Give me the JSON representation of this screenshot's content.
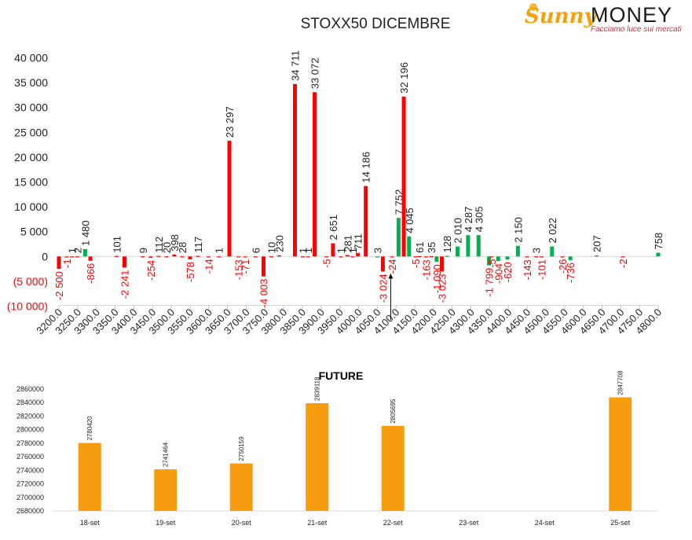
{
  "logo": {
    "brand_a": "Sunny",
    "brand_b": "MONEY",
    "tagline": "Facciamo luce sui mercati"
  },
  "colors": {
    "call": "#00b050",
    "put": "#ff0000",
    "future": "#f59d0e",
    "axis": "#d9d9d9",
    "text": "#222222",
    "neg_text": "#ff0000"
  },
  "chart_data": [
    {
      "type": "bar",
      "title": "STOXX50 DICEMBRE",
      "ylim": [
        -10000,
        40000
      ],
      "yticks": [
        {
          "value": 40000,
          "label": "40 000"
        },
        {
          "value": 35000,
          "label": "35 000"
        },
        {
          "value": 30000,
          "label": "30 000"
        },
        {
          "value": 25000,
          "label": "25 000"
        },
        {
          "value": 20000,
          "label": "20 000"
        },
        {
          "value": 15000,
          "label": "15 000"
        },
        {
          "value": 10000,
          "label": "10 000"
        },
        {
          "value": 5000,
          "label": "5 000"
        },
        {
          "value": 0,
          "label": "0"
        },
        {
          "value": -5000,
          "label": "(5 000)"
        },
        {
          "value": -10000,
          "label": "(10 000)"
        }
      ],
      "categories": [
        "3200.0",
        "3250.0",
        "3300.0",
        "3350.0",
        "3400.0",
        "3450.0",
        "3500.0",
        "3550.0",
        "3600.0",
        "3650.0",
        "3700.0",
        "3750.0",
        "3800.0",
        "3850.0",
        "3900.0",
        "3950.0",
        "4000.0",
        "4050.0",
        "4100.0",
        "4150.0",
        "4200.0",
        "4250.0",
        "4300.0",
        "4350.0",
        "4400.0",
        "4450.0",
        "4500.0",
        "4550.0",
        "4600.0",
        "4650.0",
        "4700.0",
        "4750.0",
        "4800.0"
      ],
      "bars": [
        {
          "x": 0.0,
          "value": -2500,
          "color": "put",
          "label": "-2 500"
        },
        {
          "x": 0.3,
          "value": -1,
          "color": "put",
          "label": "-1"
        },
        {
          "x": 0.5,
          "value": 1,
          "color": "put",
          "label": "1"
        },
        {
          "x": 0.7,
          "value": 2,
          "color": "put",
          "label": "2"
        },
        {
          "x": 1.0,
          "value": 1480,
          "color": "call",
          "label": "1 480"
        },
        {
          "x": 1.2,
          "value": -866,
          "color": "put",
          "label": "-866"
        },
        {
          "x": 2.2,
          "value": 101,
          "color": "put",
          "label": "101"
        },
        {
          "x": 2.5,
          "value": -2241,
          "color": "put",
          "label": "-2 241"
        },
        {
          "x": 3.2,
          "value": 9,
          "color": "put",
          "label": "9"
        },
        {
          "x": 3.5,
          "value": -254,
          "color": "put",
          "label": "-254"
        },
        {
          "x": 3.8,
          "value": 112,
          "color": "put",
          "label": "112"
        },
        {
          "x": 4.1,
          "value": 20,
          "color": "put",
          "label": "20"
        },
        {
          "x": 4.4,
          "value": 398,
          "color": "put",
          "label": "398"
        },
        {
          "x": 4.7,
          "value": 28,
          "color": "put",
          "label": "28"
        },
        {
          "x": 5.0,
          "value": -578,
          "color": "put",
          "label": "-578"
        },
        {
          "x": 5.3,
          "value": 117,
          "color": "put",
          "label": "117"
        },
        {
          "x": 5.7,
          "value": -14,
          "color": "put",
          "label": "-14"
        },
        {
          "x": 6.1,
          "value": 1,
          "color": "put",
          "label": "1"
        },
        {
          "x": 6.5,
          "value": 23297,
          "color": "put",
          "label": "23 297"
        },
        {
          "x": 6.85,
          "value": -153,
          "color": "put",
          "label": "-153"
        },
        {
          "x": 7.1,
          "value": -71,
          "color": "put",
          "label": "-71"
        },
        {
          "x": 7.5,
          "value": 6,
          "color": "put",
          "label": "6"
        },
        {
          "x": 7.8,
          "value": -4003,
          "color": "put",
          "label": "-4 003"
        },
        {
          "x": 8.1,
          "value": 10,
          "color": "put",
          "label": "10"
        },
        {
          "x": 8.4,
          "value": 230,
          "color": "put",
          "label": "230"
        },
        {
          "x": 9.0,
          "value": 34711,
          "color": "put",
          "label": "34 711"
        },
        {
          "x": 9.3,
          "value": 1,
          "color": "put",
          "label": "1"
        },
        {
          "x": 9.5,
          "value": 1,
          "color": "put",
          "label": "1"
        },
        {
          "x": 9.75,
          "value": 33072,
          "color": "put",
          "label": "33 072"
        },
        {
          "x": 10.2,
          "value": -5,
          "color": "put",
          "label": "-5"
        },
        {
          "x": 10.45,
          "value": 2651,
          "color": "put",
          "label": "2 651"
        },
        {
          "x": 10.75,
          "value": 1,
          "color": "put",
          "label": "1"
        },
        {
          "x": 11.0,
          "value": 281,
          "color": "put",
          "label": "281"
        },
        {
          "x": 11.2,
          "value": 1,
          "color": "put",
          "label": "1"
        },
        {
          "x": 11.4,
          "value": 711,
          "color": "put",
          "label": "711"
        },
        {
          "x": 11.7,
          "value": 14186,
          "color": "put",
          "label": "14 186"
        },
        {
          "x": 12.15,
          "value": 3,
          "color": "call",
          "label": "3"
        },
        {
          "x": 12.35,
          "value": -3024,
          "color": "put",
          "label": "-3 024"
        },
        {
          "x": 12.7,
          "value": -24,
          "color": "put",
          "label": "-24"
        },
        {
          "x": 12.95,
          "value": 7752,
          "color": "call",
          "label": "7 752"
        },
        {
          "x": 13.15,
          "value": 32196,
          "color": "put",
          "label": "32 196"
        },
        {
          "x": 13.35,
          "value": 4045,
          "color": "call",
          "label": "4 045"
        },
        {
          "x": 13.6,
          "value": -5,
          "color": "put",
          "label": "-5"
        },
        {
          "x": 13.75,
          "value": 61,
          "color": "put",
          "label": "61"
        },
        {
          "x": 14.0,
          "value": -163,
          "color": "put",
          "label": "-163"
        },
        {
          "x": 14.2,
          "value": 35,
          "color": "put",
          "label": "35"
        },
        {
          "x": 14.4,
          "value": -1090,
          "color": "call",
          "label": "-1 090"
        },
        {
          "x": 14.6,
          "value": -3023,
          "color": "put",
          "label": "-3 023"
        },
        {
          "x": 14.8,
          "value": 128,
          "color": "call",
          "label": "128"
        },
        {
          "x": 15.2,
          "value": 2010,
          "color": "call",
          "label": "2 010"
        },
        {
          "x": 15.6,
          "value": 4287,
          "color": "call",
          "label": "4 287"
        },
        {
          "x": 16.0,
          "value": 4305,
          "color": "call",
          "label": "4 305"
        },
        {
          "x": 16.4,
          "value": -1799,
          "color": "call",
          "label": "-1 799"
        },
        {
          "x": 16.5,
          "value": -5,
          "color": "put",
          "label": "-5"
        },
        {
          "x": 16.75,
          "value": -904,
          "color": "call",
          "label": "-904"
        },
        {
          "x": 17.1,
          "value": -620,
          "color": "call",
          "label": "-620"
        },
        {
          "x": 17.5,
          "value": 2150,
          "color": "call",
          "label": "2 150"
        },
        {
          "x": 17.85,
          "value": -143,
          "color": "put",
          "label": "-143"
        },
        {
          "x": 18.2,
          "value": 3,
          "color": "put",
          "label": "3"
        },
        {
          "x": 18.4,
          "value": -101,
          "color": "put",
          "label": "-101"
        },
        {
          "x": 18.8,
          "value": 2022,
          "color": "call",
          "label": "2 022"
        },
        {
          "x": 19.2,
          "value": -26,
          "color": "put",
          "label": "-26"
        },
        {
          "x": 19.5,
          "value": -736,
          "color": "call",
          "label": "-736"
        },
        {
          "x": 20.5,
          "value": 207,
          "color": "call",
          "label": "207"
        },
        {
          "x": 21.5,
          "value": -2,
          "color": "put",
          "label": "-2"
        },
        {
          "x": 22.85,
          "value": 758,
          "color": "call",
          "label": "758"
        }
      ],
      "annotation": {
        "type": "arrow",
        "x": 12.65,
        "value": -3500,
        "to_value": -12800
      }
    },
    {
      "type": "bar",
      "title": "FUTURE",
      "ylim": [
        2680000,
        2860000
      ],
      "yticks": [
        2860000,
        2840000,
        2820000,
        2800000,
        2780000,
        2760000,
        2740000,
        2720000,
        2700000,
        2680000
      ],
      "categories": [
        "18-set",
        "19-set",
        "20-set",
        "21-set",
        "22-set",
        "23-set",
        "24-set",
        "25-set"
      ],
      "values": [
        2780420,
        2741464,
        2750159,
        2839118,
        2805695,
        null,
        null,
        2847708
      ],
      "labels": [
        "2780420",
        "2741464",
        "2750159",
        "2839118",
        "2805695",
        "",
        "",
        "2847708"
      ]
    }
  ]
}
